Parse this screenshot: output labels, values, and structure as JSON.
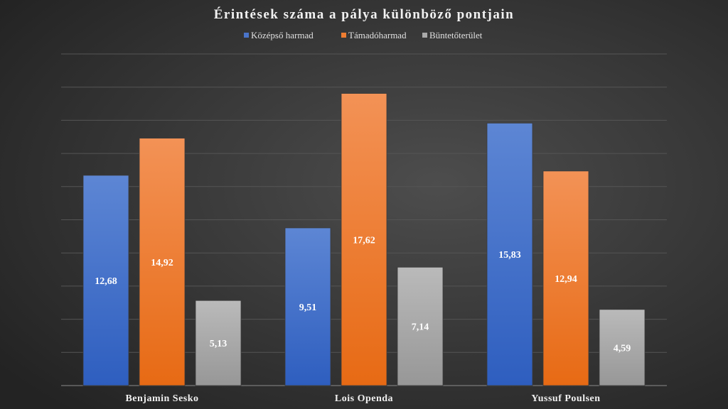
{
  "chart_data": {
    "type": "bar",
    "title": "Érintések száma a pálya különböző pontjain",
    "categories": [
      "Benjamin Sesko",
      "Lois Openda",
      "Yussuf Poulsen"
    ],
    "series": [
      {
        "name": "Középső harmad",
        "values": [
          12.68,
          9.51,
          15.83
        ],
        "labels": [
          "12,68",
          "9,51",
          "15,83"
        ],
        "color": "#4a74c9"
      },
      {
        "name": "Támadóharmad",
        "values": [
          14.92,
          17.62,
          12.94
        ],
        "labels": [
          "14,92",
          "17,62",
          "12,94"
        ],
        "color": "#ee7d31"
      },
      {
        "name": "Büntetőterület",
        "values": [
          5.13,
          7.14,
          4.59
        ],
        "labels": [
          "5,13",
          "7,14",
          "4,59"
        ],
        "color": "#a9a9a9"
      }
    ],
    "xlabel": "",
    "ylabel": "",
    "ylim": [
      0,
      20
    ],
    "grid": true,
    "gridStep": 2,
    "legend": "top"
  }
}
